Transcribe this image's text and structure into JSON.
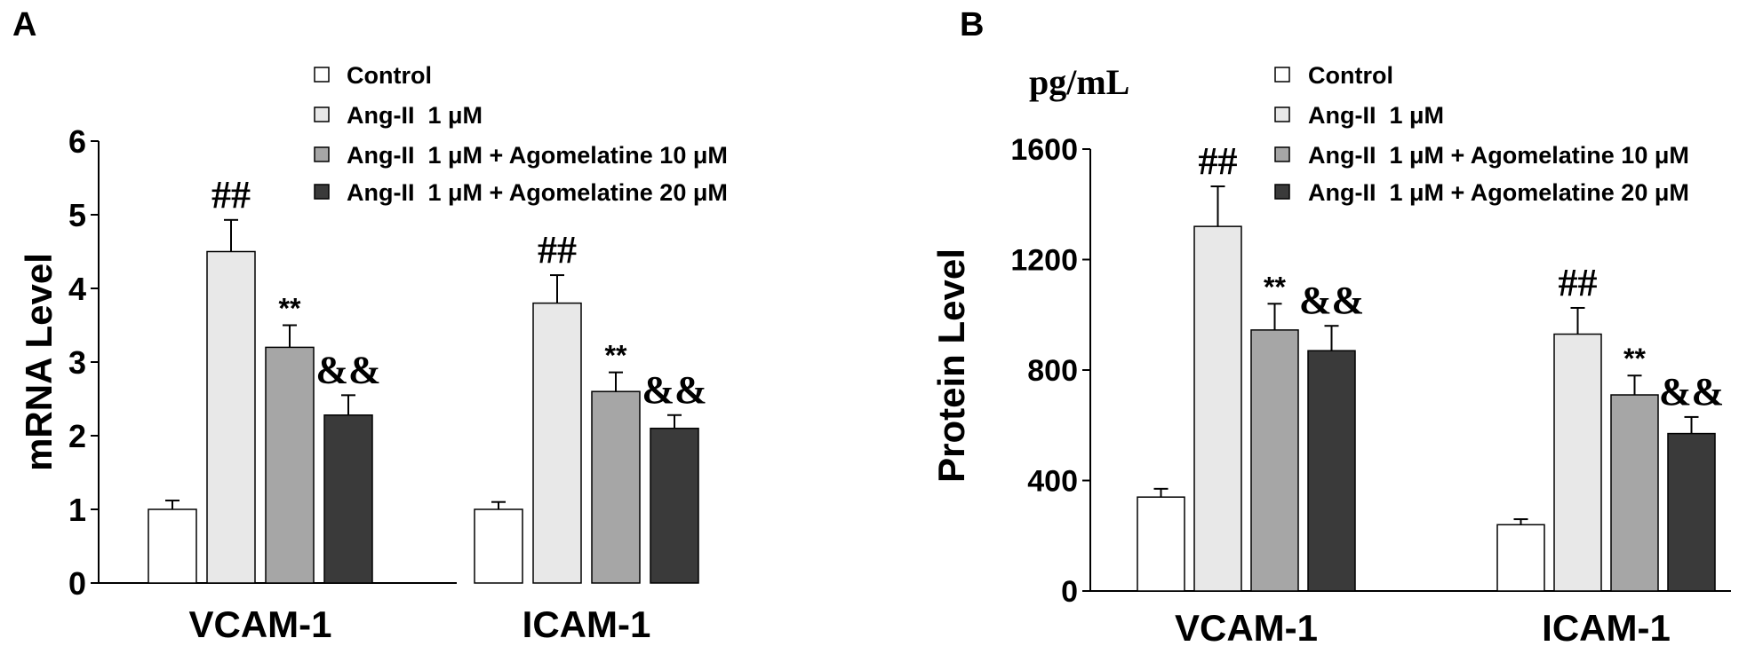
{
  "panels": [
    "A",
    "B"
  ],
  "colors": {
    "control": "#ffffff",
    "ang": "#e8e8e8",
    "ago10": "#a6a6a6",
    "ago20": "#3a3a3a",
    "stroke": "#000000"
  },
  "chart_data": [
    {
      "type": "bar",
      "panel": "A",
      "ylabel": "mRNA Level",
      "unit": "",
      "ylim": [
        0,
        6
      ],
      "yticks": [
        0,
        1,
        2,
        3,
        4,
        5,
        6
      ],
      "categories": [
        "VCAM-1",
        "ICAM-1"
      ],
      "legend": [
        "Control",
        "Ang-II  1 μM",
        "Ang-II  1 μM + Agomelatine 10 μM",
        "Ang-II  1 μM + Agomelatine 20 μM"
      ],
      "legend_position": "top-right",
      "series": [
        {
          "name": "Control",
          "values": [
            1.0,
            1.0
          ],
          "errors": [
            0.12,
            0.1
          ],
          "marks": [
            "",
            ""
          ]
        },
        {
          "name": "Ang-II  1 μM",
          "values": [
            4.5,
            3.8
          ],
          "errors": [
            0.43,
            0.38
          ],
          "marks": [
            "##",
            "##"
          ]
        },
        {
          "name": "Ang-II  1 μM + Agomelatine 10 μM",
          "values": [
            3.2,
            2.6
          ],
          "errors": [
            0.3,
            0.26
          ],
          "marks": [
            "**",
            "**"
          ]
        },
        {
          "name": "Ang-II  1 μM + Agomelatine 20 μM",
          "values": [
            2.28,
            2.1
          ],
          "errors": [
            0.27,
            0.18
          ],
          "marks": [
            "&&",
            "&&"
          ]
        }
      ]
    },
    {
      "type": "bar",
      "panel": "B",
      "ylabel": "Protein Level",
      "unit": "pg/mL",
      "ylim": [
        0,
        1600
      ],
      "yticks": [
        0,
        400,
        800,
        1200,
        1600
      ],
      "categories": [
        "VCAM-1",
        "ICAM-1"
      ],
      "legend": [
        "Control",
        "Ang-II  1 μM",
        "Ang-II  1 μM + Agomelatine 10 μM",
        "Ang-II  1 μM + Agomelatine 20 μM"
      ],
      "legend_position": "top-right",
      "series": [
        {
          "name": "Control",
          "values": [
            340,
            240
          ],
          "errors": [
            30,
            20
          ],
          "marks": [
            "",
            ""
          ]
        },
        {
          "name": "Ang-II  1 μM",
          "values": [
            1320,
            930
          ],
          "errors": [
            145,
            95
          ],
          "marks": [
            "##",
            "##"
          ]
        },
        {
          "name": "Ang-II  1 μM + Agomelatine 10 μM",
          "values": [
            945,
            710
          ],
          "errors": [
            95,
            70
          ],
          "marks": [
            "**",
            "**"
          ]
        },
        {
          "name": "Ang-II  1 μM + Agomelatine 20 μM",
          "values": [
            870,
            570
          ],
          "errors": [
            90,
            60
          ],
          "marks": [
            "&&",
            "&&"
          ]
        }
      ]
    }
  ]
}
